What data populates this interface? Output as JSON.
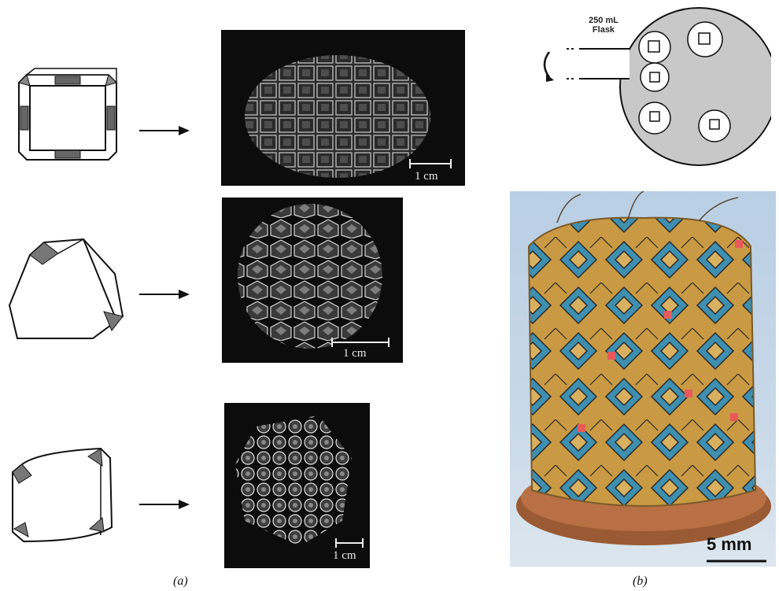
{
  "panel_a": {
    "caption": "(a)",
    "rows": [
      {
        "shape": "truncated-cube",
        "scale_label": "1 cm"
      },
      {
        "shape": "truncated-tetrahedron",
        "scale_label": "1 cm"
      },
      {
        "shape": "truncated-cube-rounded",
        "scale_label": "1 cm"
      }
    ]
  },
  "panel_b": {
    "caption": "(b)",
    "flask_label_line1": "250 mL",
    "flask_label_line2": "Flask",
    "photo_scale_label": "5 mm"
  },
  "icons": [
    "arrow-right-icon",
    "rotation-arrow-icon",
    "polyhedron-icon"
  ],
  "colors": {
    "photo_background": "#0c0c0c",
    "flask_fill": "#c8c8c8",
    "copper_penny": "#9a5a33",
    "amber_resin": "#c99a43",
    "blue_pattern": "#3e8fb0"
  }
}
